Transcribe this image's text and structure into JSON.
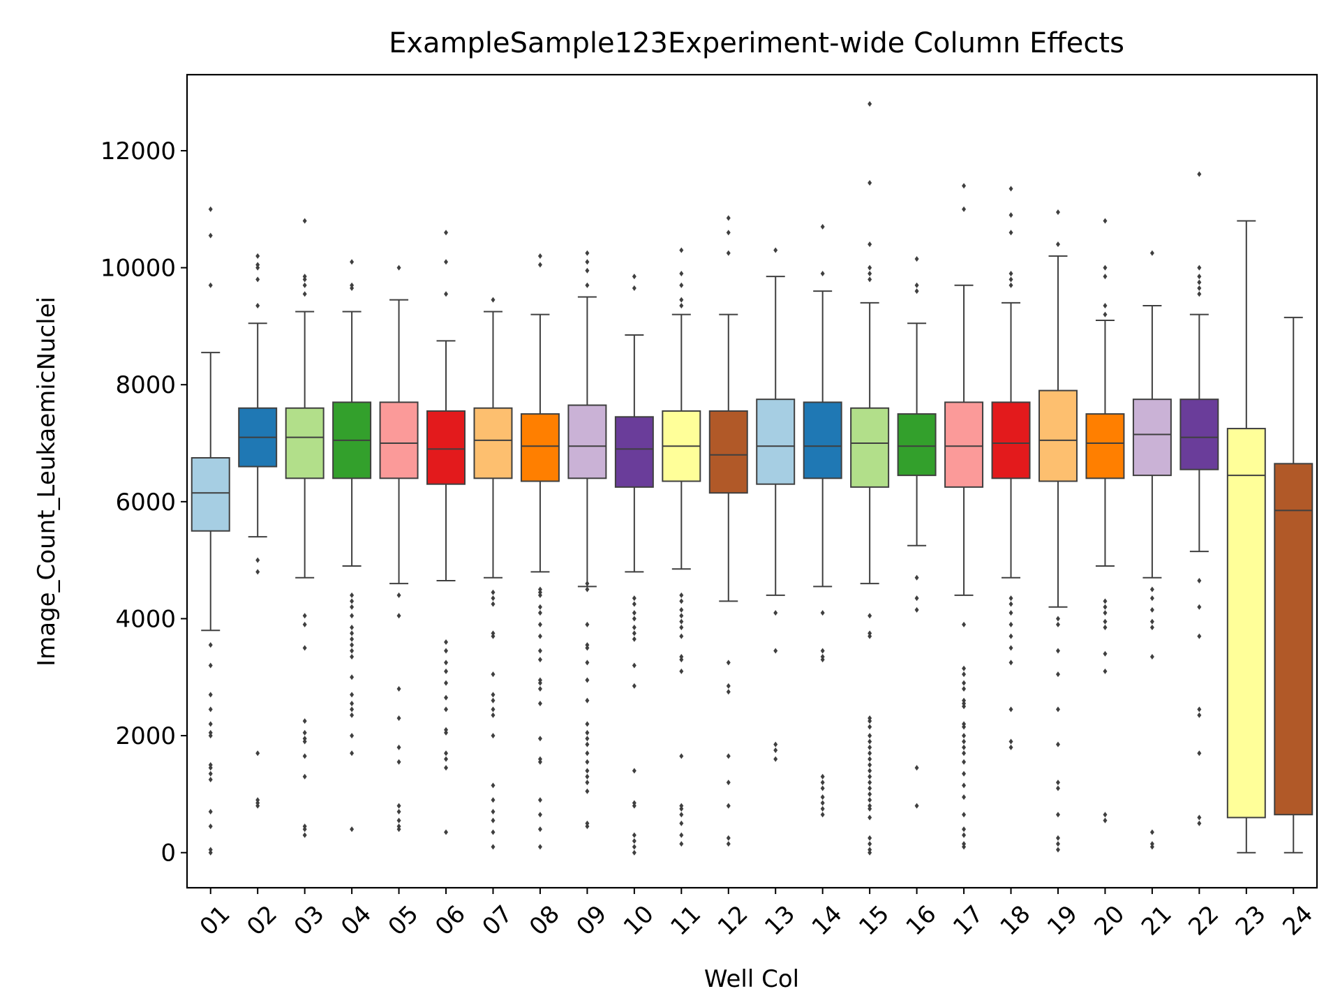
{
  "chart_data": {
    "type": "box",
    "title": "ExampleSample123Experiment-wide Column Effects",
    "xlabel": "Well Col",
    "ylabel": "Image_Count_LeukaemicNuclei",
    "ylim": [
      -600,
      13300
    ],
    "yticks": [
      0,
      2000,
      4000,
      6000,
      8000,
      10000,
      12000
    ],
    "grid": false,
    "palette": [
      "#a6cee3",
      "#1f78b4",
      "#b2df8a",
      "#33a02c",
      "#fb9a99",
      "#e31a1c",
      "#fdbf6f",
      "#ff7f00",
      "#cab2d6",
      "#6a3d9a",
      "#ffff99",
      "#b15928"
    ],
    "categories": [
      "01",
      "02",
      "03",
      "04",
      "05",
      "06",
      "07",
      "08",
      "09",
      "10",
      "11",
      "12",
      "13",
      "14",
      "15",
      "16",
      "17",
      "18",
      "19",
      "20",
      "21",
      "22",
      "23",
      "24"
    ],
    "boxes": [
      {
        "q1": 5500,
        "median": 6150,
        "q3": 6750,
        "whislo": 3800,
        "whishi": 8550,
        "fliers": [
          0,
          50,
          450,
          700,
          1250,
          1350,
          1450,
          1500,
          2000,
          2050,
          2200,
          2450,
          2700,
          3200,
          3550,
          9700,
          10550,
          11000
        ]
      },
      {
        "q1": 6600,
        "median": 7100,
        "q3": 7600,
        "whislo": 5400,
        "whishi": 9050,
        "fliers": [
          800,
          850,
          900,
          1700,
          4800,
          5000,
          9350,
          9800,
          10000,
          10050,
          10200
        ]
      },
      {
        "q1": 6400,
        "median": 7100,
        "q3": 7600,
        "whislo": 4700,
        "whishi": 9250,
        "fliers": [
          300,
          400,
          450,
          1300,
          1650,
          1900,
          1950,
          2050,
          2250,
          3500,
          3900,
          4050,
          9550,
          9700,
          9800,
          9850,
          10800
        ]
      },
      {
        "q1": 6400,
        "median": 7050,
        "q3": 7700,
        "whislo": 4900,
        "whishi": 9250,
        "fliers": [
          400,
          1700,
          2000,
          2350,
          2450,
          2550,
          2700,
          3000,
          3350,
          3450,
          3550,
          3650,
          3750,
          3850,
          4050,
          4200,
          4300,
          4400,
          9650,
          9700,
          10100
        ]
      },
      {
        "q1": 6400,
        "median": 7000,
        "q3": 7700,
        "whislo": 4600,
        "whishi": 9450,
        "fliers": [
          400,
          450,
          550,
          700,
          800,
          1550,
          1800,
          2300,
          2800,
          4050,
          4400,
          10000
        ]
      },
      {
        "q1": 6300,
        "median": 6900,
        "q3": 7550,
        "whislo": 4650,
        "whishi": 8750,
        "fliers": [
          350,
          1450,
          1600,
          1700,
          2050,
          2100,
          2450,
          2650,
          2900,
          3100,
          3250,
          3450,
          3600,
          9550,
          10100,
          10600
        ]
      },
      {
        "q1": 6400,
        "median": 7050,
        "q3": 7600,
        "whislo": 4700,
        "whishi": 9250,
        "fliers": [
          100,
          350,
          550,
          700,
          900,
          1150,
          2000,
          2350,
          2450,
          2600,
          2700,
          3050,
          3700,
          3750,
          4250,
          4350,
          4450,
          9450
        ]
      },
      {
        "q1": 6350,
        "median": 6950,
        "q3": 7500,
        "whislo": 4800,
        "whishi": 9200,
        "fliers": [
          100,
          400,
          650,
          900,
          1550,
          1600,
          1950,
          2550,
          2800,
          2900,
          2950,
          3300,
          3450,
          3700,
          3900,
          4100,
          4200,
          4400,
          4450,
          4500,
          10050,
          10200
        ]
      },
      {
        "q1": 6400,
        "median": 6950,
        "q3": 7650,
        "whislo": 4550,
        "whishi": 9500,
        "fliers": [
          450,
          500,
          1050,
          1200,
          1300,
          1400,
          1550,
          1700,
          1850,
          1950,
          2050,
          2200,
          2600,
          2950,
          3250,
          3500,
          3550,
          3900,
          4500,
          4600,
          9700,
          9950,
          10100,
          10250
        ]
      },
      {
        "q1": 6250,
        "median": 6900,
        "q3": 7450,
        "whislo": 4800,
        "whishi": 8850,
        "fliers": [
          0,
          100,
          200,
          300,
          800,
          850,
          1400,
          2850,
          3200,
          3650,
          3750,
          3850,
          4000,
          4100,
          4250,
          4350,
          9650,
          9850
        ]
      },
      {
        "q1": 6350,
        "median": 6950,
        "q3": 7550,
        "whislo": 4850,
        "whishi": 9200,
        "fliers": [
          150,
          300,
          500,
          650,
          750,
          800,
          1650,
          3100,
          3300,
          3350,
          3700,
          3850,
          3950,
          4050,
          4150,
          4300,
          4400,
          9350,
          9450,
          9700,
          9900,
          10300
        ]
      },
      {
        "q1": 6150,
        "median": 6800,
        "q3": 7550,
        "whislo": 4300,
        "whishi": 9200,
        "fliers": [
          150,
          250,
          800,
          1200,
          1650,
          2750,
          2850,
          3250,
          10250,
          10600,
          10850
        ]
      },
      {
        "q1": 6300,
        "median": 6950,
        "q3": 7750,
        "whislo": 4400,
        "whishi": 9850,
        "fliers": [
          1600,
          1750,
          1850,
          3450,
          4100,
          10300
        ]
      },
      {
        "q1": 6400,
        "median": 6950,
        "q3": 7700,
        "whislo": 4550,
        "whishi": 9600,
        "fliers": [
          650,
          750,
          850,
          950,
          1100,
          1200,
          1300,
          3300,
          3350,
          3450,
          4100,
          9900,
          10700
        ]
      },
      {
        "q1": 6250,
        "median": 7000,
        "q3": 7600,
        "whislo": 4600,
        "whishi": 9400,
        "fliers": [
          0,
          50,
          150,
          250,
          600,
          750,
          800,
          900,
          1000,
          1100,
          1200,
          1300,
          1400,
          1500,
          1600,
          1700,
          1800,
          1900,
          2000,
          2150,
          2250,
          2300,
          3700,
          3750,
          4050,
          9800,
          9900,
          10000,
          10400,
          11450,
          12800
        ]
      },
      {
        "q1": 6450,
        "median": 6950,
        "q3": 7500,
        "whislo": 5250,
        "whishi": 9050,
        "fliers": [
          800,
          1450,
          4150,
          4350,
          4700,
          9600,
          9700,
          10150
        ]
      },
      {
        "q1": 6250,
        "median": 6950,
        "q3": 7700,
        "whislo": 4400,
        "whishi": 9700,
        "fliers": [
          100,
          150,
          300,
          400,
          650,
          950,
          1150,
          1350,
          1550,
          1700,
          1800,
          1900,
          2000,
          2150,
          2200,
          2500,
          2550,
          2600,
          2800,
          2900,
          3050,
          3150,
          3900,
          11000,
          11400
        ]
      },
      {
        "q1": 6400,
        "median": 7000,
        "q3": 7700,
        "whislo": 4700,
        "whishi": 9400,
        "fliers": [
          1800,
          1900,
          2450,
          3250,
          3500,
          3700,
          3900,
          4100,
          4250,
          4350,
          9700,
          9800,
          9900,
          10600,
          10900,
          11350
        ]
      },
      {
        "q1": 6350,
        "median": 7050,
        "q3": 7900,
        "whislo": 4200,
        "whishi": 10200,
        "fliers": [
          50,
          150,
          250,
          650,
          1100,
          1200,
          1850,
          2450,
          3050,
          3450,
          3900,
          4000,
          10400,
          10950
        ]
      },
      {
        "q1": 6400,
        "median": 7000,
        "q3": 7500,
        "whislo": 4900,
        "whishi": 9100,
        "fliers": [
          550,
          650,
          3100,
          3400,
          3850,
          3950,
          4100,
          4200,
          4300,
          9200,
          9350,
          9850,
          10000,
          10800
        ]
      },
      {
        "q1": 6450,
        "median": 7150,
        "q3": 7750,
        "whislo": 4700,
        "whishi": 9350,
        "fliers": [
          100,
          150,
          350,
          3350,
          3850,
          3950,
          4150,
          4350,
          4500,
          10250
        ]
      },
      {
        "q1": 6550,
        "median": 7100,
        "q3": 7750,
        "whislo": 5150,
        "whishi": 9200,
        "fliers": [
          500,
          600,
          1700,
          2350,
          2450,
          3700,
          4200,
          4650,
          9550,
          9650,
          9750,
          9850,
          10000,
          11600
        ]
      },
      {
        "q1": 600,
        "median": 6450,
        "q3": 7250,
        "whislo": 0,
        "whishi": 10800,
        "fliers": []
      },
      {
        "q1": 650,
        "median": 5850,
        "q3": 6650,
        "whislo": 0,
        "whishi": 9150,
        "fliers": []
      }
    ]
  }
}
